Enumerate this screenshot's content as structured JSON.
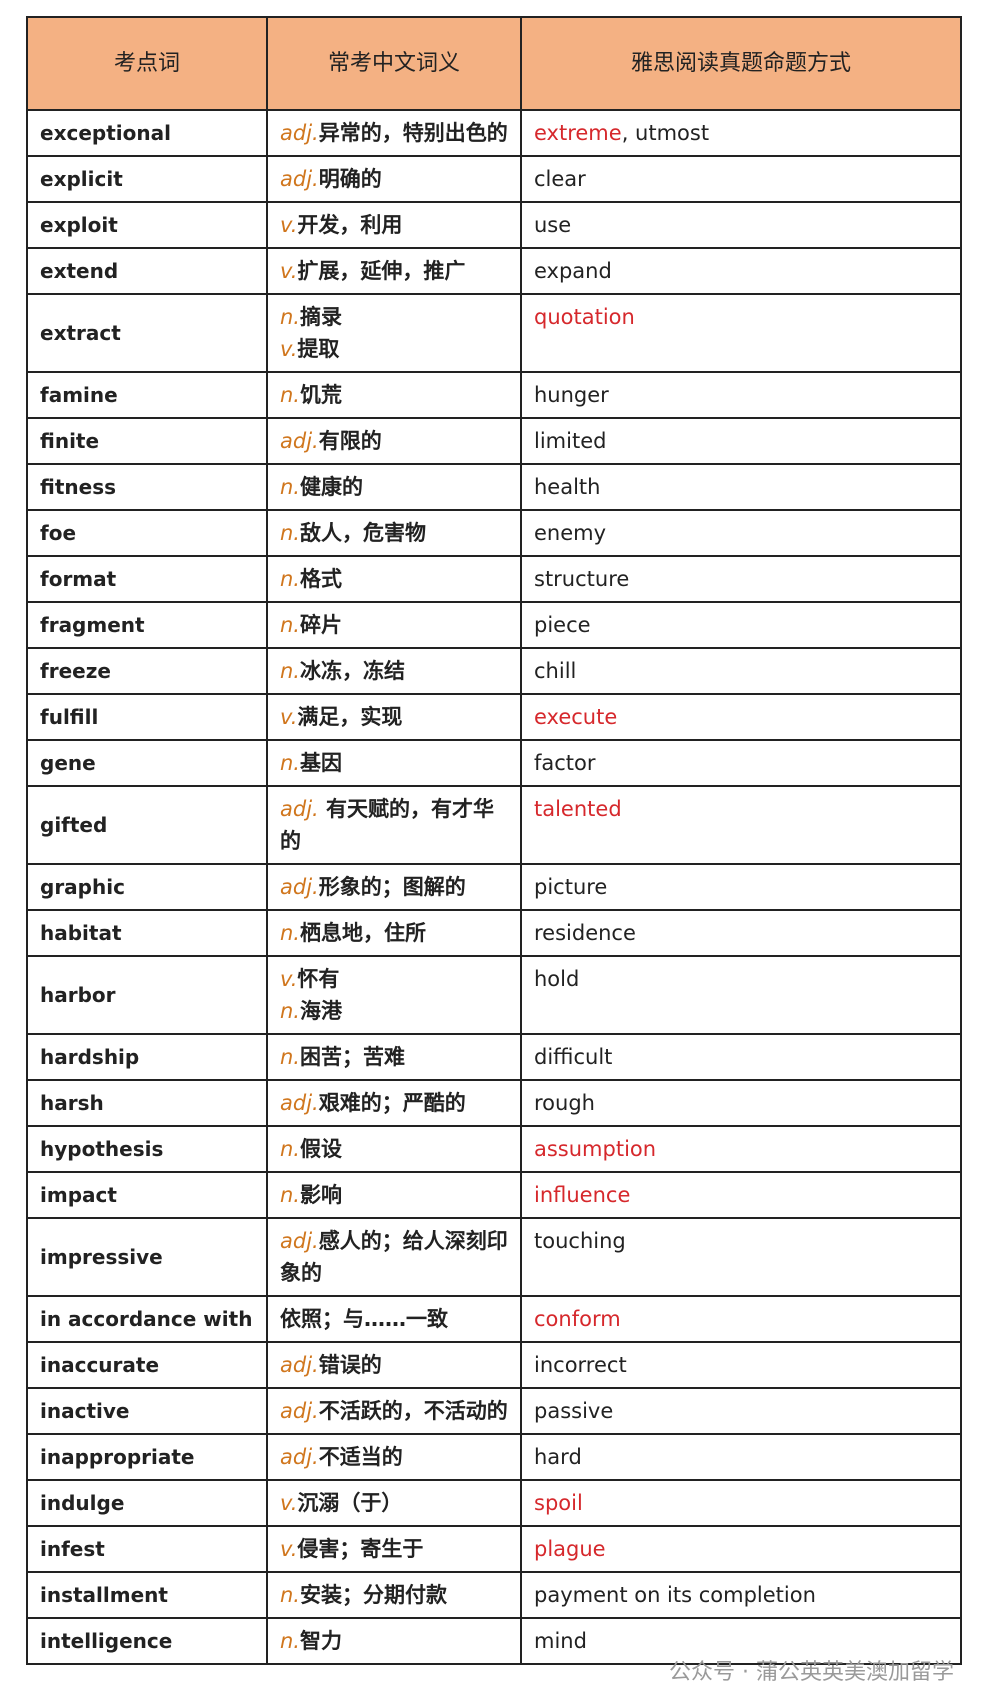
{
  "table": {
    "header": [
      "考点词",
      "常考中文词义",
      "雅思阅读真题命题方式"
    ],
    "rows": [
      {
        "word": "exceptional",
        "senses": [
          {
            "pos": "adj.",
            "meaning": "异常的，特别出色的"
          }
        ],
        "answer": [
          {
            "text": "extreme",
            "highlight": true
          },
          {
            "text": ", utmost"
          }
        ]
      },
      {
        "word": "explicit",
        "senses": [
          {
            "pos": "adj.",
            "meaning": "明确的"
          }
        ],
        "answer": [
          {
            "text": "clear"
          }
        ]
      },
      {
        "word": "exploit",
        "senses": [
          {
            "pos": "v.",
            "meaning": "开发，利用"
          }
        ],
        "answer": [
          {
            "text": "use"
          }
        ]
      },
      {
        "word": "extend",
        "senses": [
          {
            "pos": "v.",
            "meaning": "扩展，延伸，推广"
          }
        ],
        "answer": [
          {
            "text": "expand"
          }
        ]
      },
      {
        "word": "extract",
        "senses": [
          {
            "pos": "n.",
            "meaning": "摘录"
          },
          {
            "pos": "v.",
            "meaning": "提取"
          }
        ],
        "answer": [
          {
            "text": "quotation",
            "highlight": true
          }
        ]
      },
      {
        "word": "famine",
        "senses": [
          {
            "pos": "n.",
            "meaning": "饥荒"
          }
        ],
        "answer": [
          {
            "text": "hunger"
          }
        ]
      },
      {
        "word": "finite",
        "senses": [
          {
            "pos": "adj.",
            "meaning": "有限的"
          }
        ],
        "answer": [
          {
            "text": "limited"
          }
        ]
      },
      {
        "word": "fitness",
        "senses": [
          {
            "pos": "n.",
            "meaning": "健康的"
          }
        ],
        "answer": [
          {
            "text": "health"
          }
        ]
      },
      {
        "word": "foe",
        "senses": [
          {
            "pos": "n.",
            "meaning": "敌人，危害物"
          }
        ],
        "answer": [
          {
            "text": "enemy"
          }
        ]
      },
      {
        "word": "format",
        "senses": [
          {
            "pos": "n.",
            "meaning": "格式"
          }
        ],
        "answer": [
          {
            "text": "structure"
          }
        ]
      },
      {
        "word": "fragment",
        "senses": [
          {
            "pos": "n.",
            "meaning": "碎片"
          }
        ],
        "answer": [
          {
            "text": "piece"
          }
        ]
      },
      {
        "word": "freeze",
        "senses": [
          {
            "pos": "n.",
            "meaning": "冰冻，冻结"
          }
        ],
        "answer": [
          {
            "text": "chill"
          }
        ]
      },
      {
        "word": "fulfill",
        "senses": [
          {
            "pos": "v.",
            "meaning": "满足，实现"
          }
        ],
        "answer": [
          {
            "text": "execute",
            "highlight": true
          }
        ]
      },
      {
        "word": "gene",
        "senses": [
          {
            "pos": "n.",
            "meaning": "基因"
          }
        ],
        "answer": [
          {
            "text": "factor"
          }
        ]
      },
      {
        "word": "gifted",
        "senses": [
          {
            "pos": "adj.",
            "meaning": " 有天赋的，有才华的"
          }
        ],
        "answer": [
          {
            "text": "talented",
            "highlight": true
          }
        ]
      },
      {
        "word": "graphic",
        "senses": [
          {
            "pos": "adj.",
            "meaning": "形象的；图解的"
          }
        ],
        "answer": [
          {
            "text": "picture"
          }
        ]
      },
      {
        "word": "habitat",
        "senses": [
          {
            "pos": "n.",
            "meaning": "栖息地，住所"
          }
        ],
        "answer": [
          {
            "text": "residence"
          }
        ]
      },
      {
        "word": "harbor",
        "senses": [
          {
            "pos": "v.",
            "meaning": "怀有"
          },
          {
            "pos": "n.",
            "meaning": "海港"
          }
        ],
        "answer": [
          {
            "text": "hold"
          }
        ]
      },
      {
        "word": "hardship",
        "senses": [
          {
            "pos": "n.",
            "meaning": "困苦；苦难"
          }
        ],
        "answer": [
          {
            "text": "difficult"
          }
        ]
      },
      {
        "word": "harsh",
        "senses": [
          {
            "pos": "adj.",
            "meaning": "艰难的；严酷的"
          }
        ],
        "answer": [
          {
            "text": "rough"
          }
        ]
      },
      {
        "word": "hypothesis",
        "senses": [
          {
            "pos": "n.",
            "meaning": "假设"
          }
        ],
        "answer": [
          {
            "text": "assumption",
            "highlight": true
          }
        ]
      },
      {
        "word": "impact",
        "senses": [
          {
            "pos": "n.",
            "meaning": "影响"
          }
        ],
        "answer": [
          {
            "text": "influence",
            "highlight": true
          }
        ]
      },
      {
        "word": "impressive",
        "senses": [
          {
            "pos": "adj.",
            "meaning": "感人的；给人深刻印象的"
          }
        ],
        "answer": [
          {
            "text": "touching"
          }
        ]
      },
      {
        "word": "in accordance with",
        "senses": [
          {
            "meaning": "依照；与……一致"
          }
        ],
        "answer": [
          {
            "text": "conform",
            "highlight": true
          }
        ]
      },
      {
        "word": "inaccurate",
        "senses": [
          {
            "pos": "adj.",
            "meaning": "错误的"
          }
        ],
        "answer": [
          {
            "text": "incorrect"
          }
        ]
      },
      {
        "word": "inactive",
        "senses": [
          {
            "pos": "adj.",
            "meaning": "不活跃的，不活动的"
          }
        ],
        "answer": [
          {
            "text": "passive"
          }
        ]
      },
      {
        "word": "inappropriate",
        "senses": [
          {
            "pos": "adj.",
            "meaning": "不适当的"
          }
        ],
        "answer": [
          {
            "text": "hard"
          }
        ]
      },
      {
        "word": "indulge",
        "senses": [
          {
            "pos": "v.",
            "meaning": "沉溺（于）"
          }
        ],
        "answer": [
          {
            "text": "spoil",
            "highlight": true
          }
        ]
      },
      {
        "word": "infest",
        "senses": [
          {
            "pos": "v.",
            "meaning": "侵害；寄生于"
          }
        ],
        "answer": [
          {
            "text": "plague",
            "highlight": true
          }
        ]
      },
      {
        "word": "installment",
        "senses": [
          {
            "pos": "n.",
            "meaning": "安装；分期付款"
          }
        ],
        "answer": [
          {
            "text": "payment on its completion"
          }
        ]
      },
      {
        "word": "intelligence",
        "senses": [
          {
            "pos": "n.",
            "meaning": "智力"
          }
        ],
        "answer": [
          {
            "text": "mind"
          }
        ]
      }
    ]
  },
  "watermark": "公众号 · 蒲公英英美澳加留学"
}
